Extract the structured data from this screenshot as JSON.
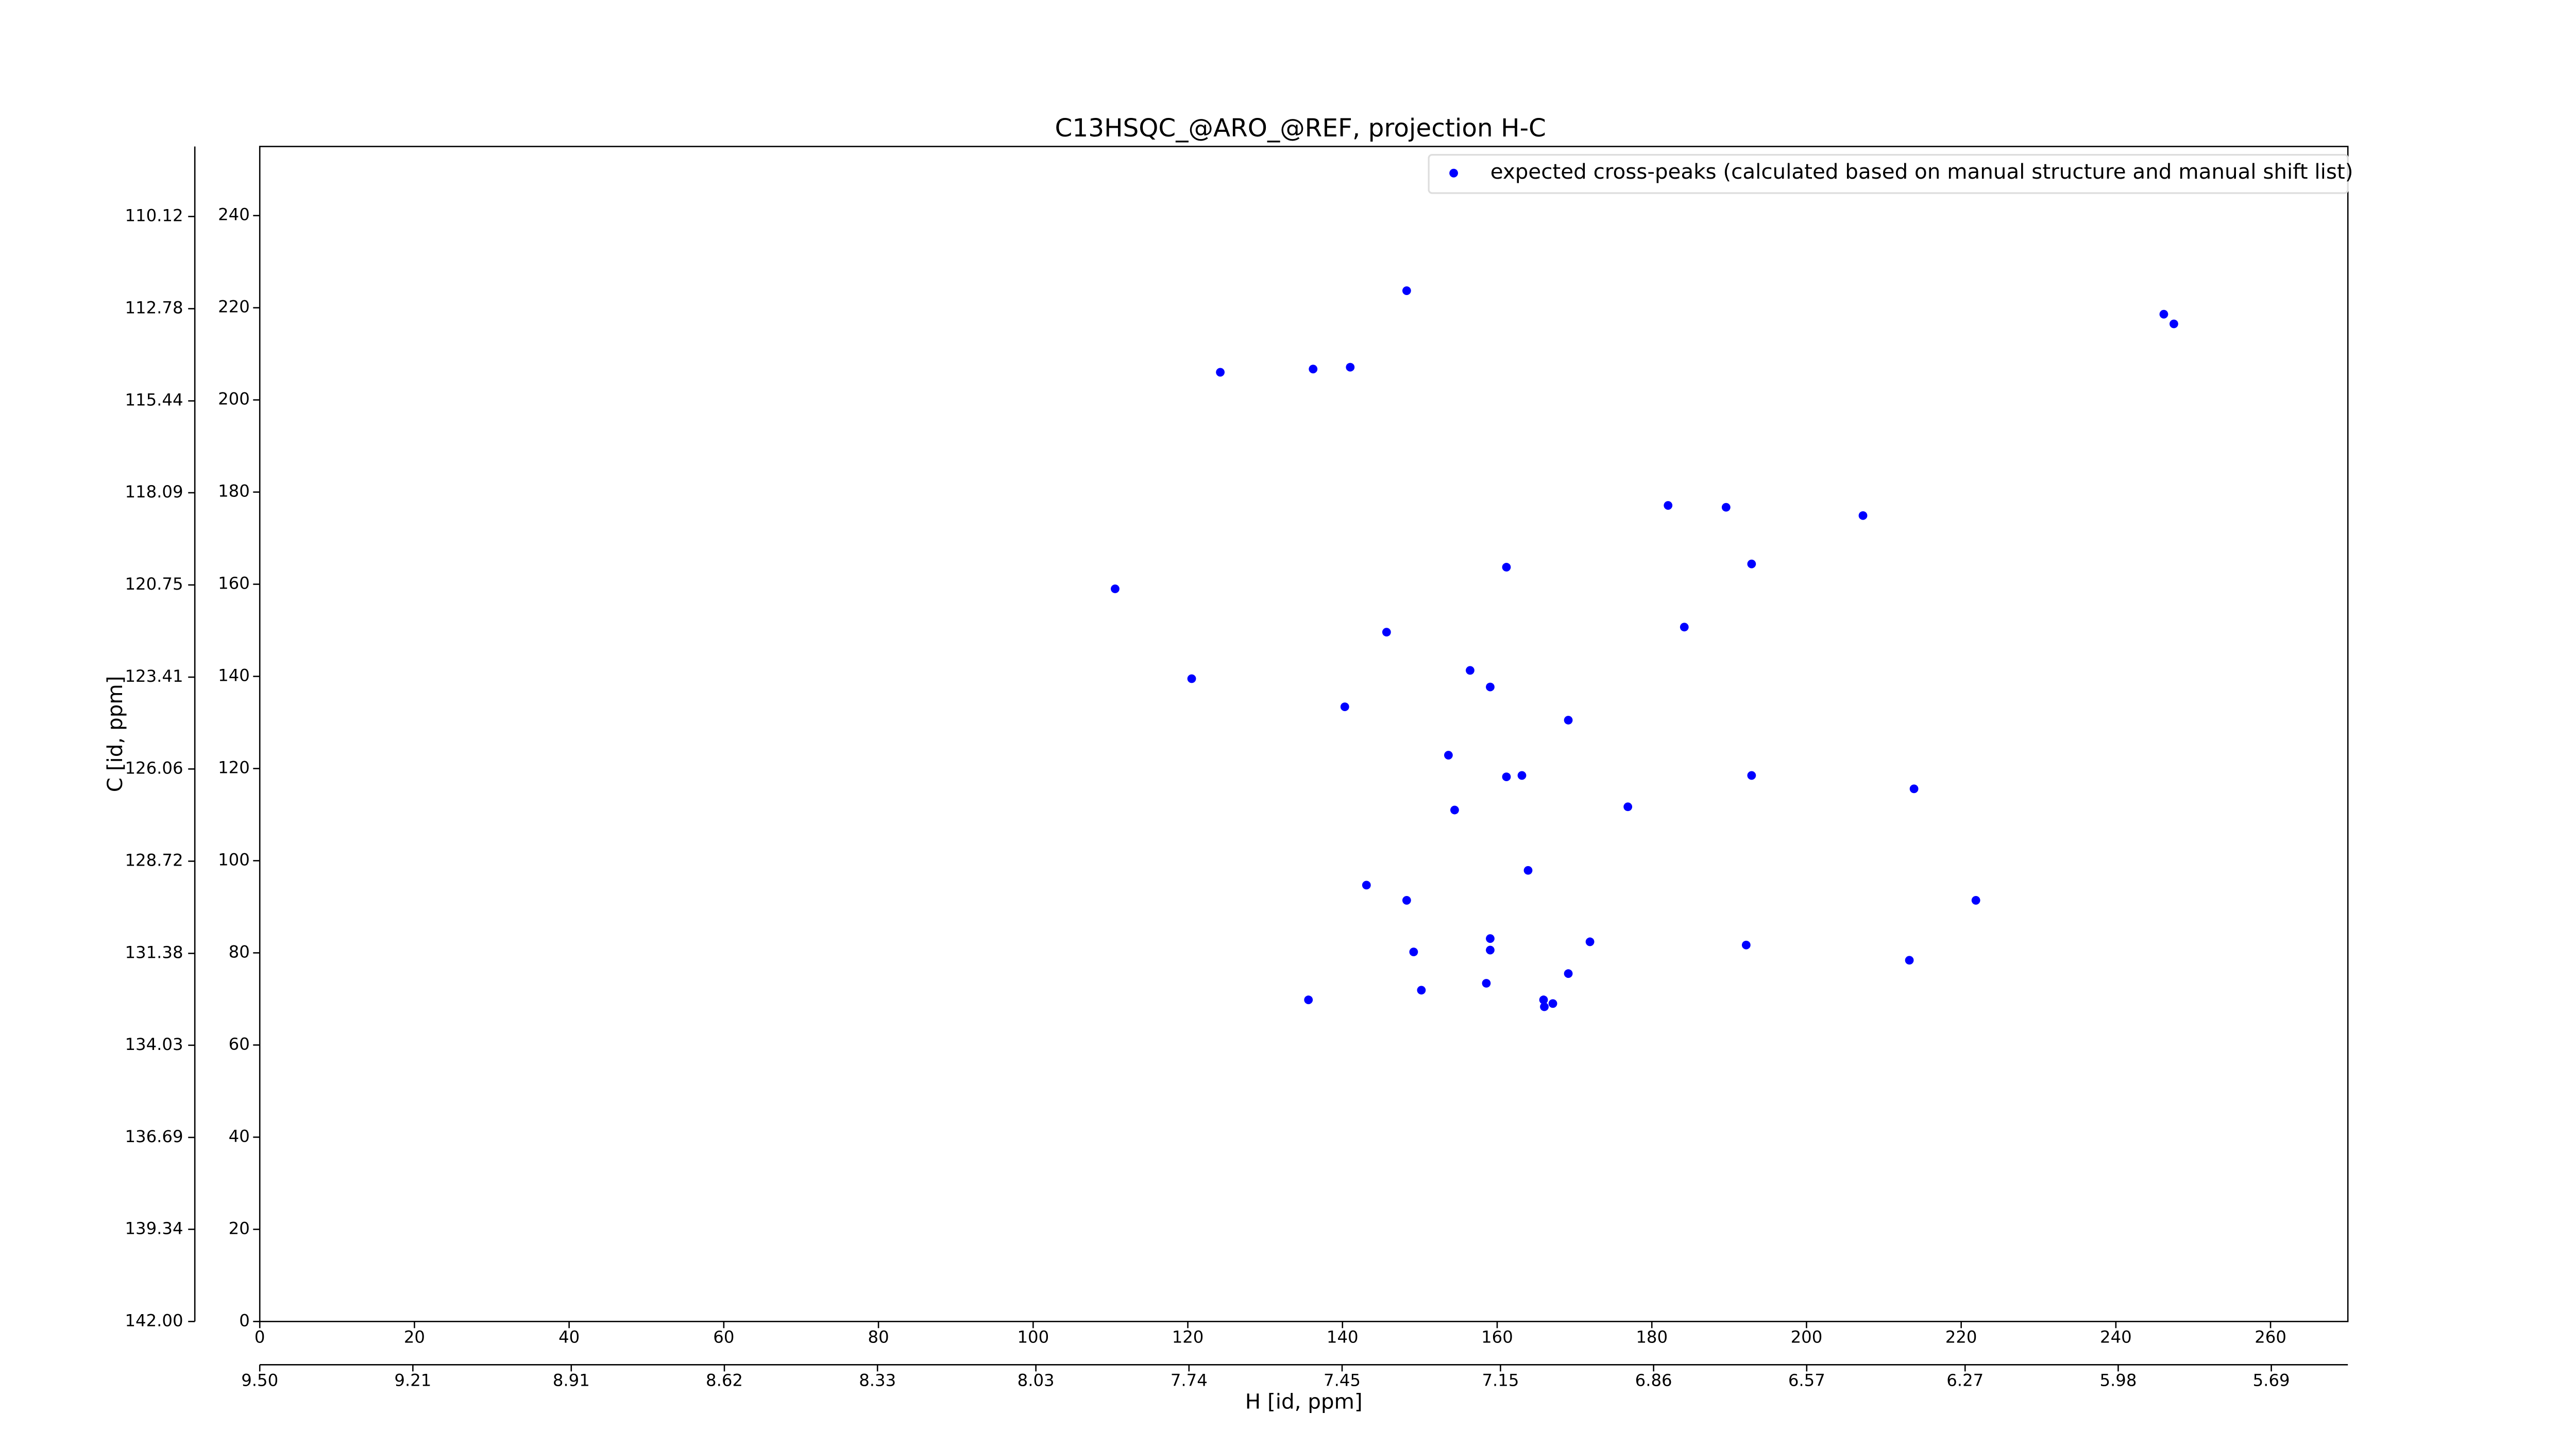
{
  "chart_data": {
    "type": "scatter",
    "title": "C13HSQC_@ARO_@REF, projection H-C",
    "xlabel": "H [id, ppm]",
    "ylabel": "C [id, ppm]",
    "xlim": [
      0,
      270
    ],
    "xticks": [
      0,
      20,
      40,
      60,
      80,
      100,
      120,
      140,
      160,
      180,
      200,
      220,
      240,
      260
    ],
    "ylim": [
      0,
      255
    ],
    "yticks": [
      0,
      20,
      40,
      60,
      80,
      100,
      120,
      140,
      160,
      180,
      200,
      220,
      240
    ],
    "x2lim": [
      9.5,
      5.545
    ],
    "x2ticks": [
      {
        "value": 9.5,
        "label": "9.50"
      },
      9.21,
      8.91,
      8.62,
      8.33,
      8.03,
      7.74,
      7.45,
      7.15,
      6.86,
      6.57,
      6.27,
      5.98,
      5.69
    ],
    "y2lim": [
      142,
      108.1
    ],
    "y2ticks": [
      110.12,
      112.78,
      115.44,
      118.09,
      120.75,
      123.41,
      126.06,
      128.72,
      131.38,
      134.03,
      136.69,
      139.34,
      {
        "value": 142,
        "label": "142.00"
      }
    ],
    "legend": "upper right",
    "series": [
      {
        "name": "expected cross-peaks (calculated based on manual structure and manual shift list)",
        "color": "#0000ff",
        "x": [
          148.3,
          246.2,
          247.5,
          124.2,
          136.2,
          141.0,
          182.1,
          189.6,
          207.3,
          161.2,
          192.9,
          110.6,
          184.2,
          145.7,
          156.5,
          120.5,
          159.1,
          140.3,
          169.2,
          153.7,
          161.2,
          163.2,
          192.9,
          213.9,
          154.5,
          176.9,
          164.0,
          143.1,
          148.3,
          221.9,
          159.1,
          172.0,
          192.2,
          149.2,
          159.1,
          213.3,
          169.2,
          158.6,
          150.2,
          166.0,
          135.6,
          167.2,
          166.1
        ],
        "values": [
          223.7,
          218.6,
          216.5,
          206.0,
          206.7,
          207.1,
          177.1,
          176.7,
          174.9,
          163.7,
          164.4,
          159.0,
          150.7,
          149.6,
          141.3,
          139.5,
          137.7,
          133.4,
          130.5,
          122.9,
          118.2,
          118.5,
          118.5,
          115.6,
          111.0,
          111.7,
          97.9,
          94.7,
          91.4,
          91.4,
          83.1,
          82.4,
          81.7,
          80.2,
          80.6,
          78.4,
          75.5,
          73.4,
          71.9,
          69.8,
          69.8,
          69.0,
          68.3
        ]
      }
    ]
  }
}
